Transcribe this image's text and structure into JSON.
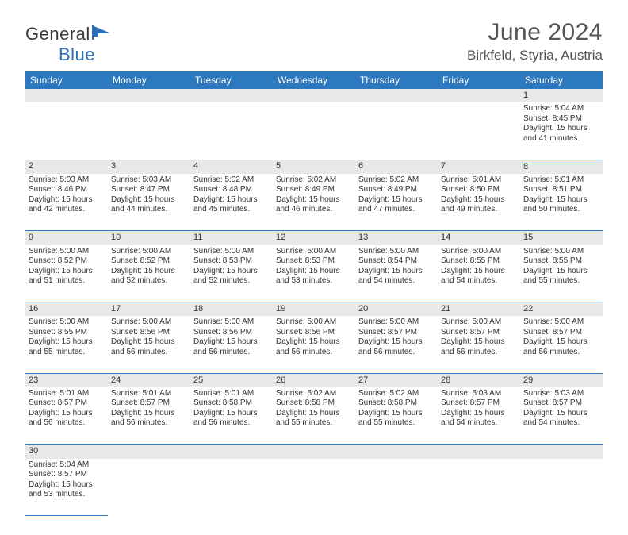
{
  "logo": {
    "text1": "General",
    "text2": "Blue"
  },
  "title": "June 2024",
  "location": "Birkfeld, Styria, Austria",
  "colors": {
    "header_bg": "#2d79bf",
    "header_text": "#ffffff",
    "daynum_bg": "#e8e8e8",
    "rule": "#2d79bf",
    "text": "#333333",
    "title_text": "#555555"
  },
  "day_headers": [
    "Sunday",
    "Monday",
    "Tuesday",
    "Wednesday",
    "Thursday",
    "Friday",
    "Saturday"
  ],
  "weeks": [
    [
      null,
      null,
      null,
      null,
      null,
      null,
      {
        "n": "1",
        "sr": "5:04 AM",
        "ss": "8:45 PM",
        "dl": "15 hours and 41 minutes."
      }
    ],
    [
      {
        "n": "2",
        "sr": "5:03 AM",
        "ss": "8:46 PM",
        "dl": "15 hours and 42 minutes."
      },
      {
        "n": "3",
        "sr": "5:03 AM",
        "ss": "8:47 PM",
        "dl": "15 hours and 44 minutes."
      },
      {
        "n": "4",
        "sr": "5:02 AM",
        "ss": "8:48 PM",
        "dl": "15 hours and 45 minutes."
      },
      {
        "n": "5",
        "sr": "5:02 AM",
        "ss": "8:49 PM",
        "dl": "15 hours and 46 minutes."
      },
      {
        "n": "6",
        "sr": "5:02 AM",
        "ss": "8:49 PM",
        "dl": "15 hours and 47 minutes."
      },
      {
        "n": "7",
        "sr": "5:01 AM",
        "ss": "8:50 PM",
        "dl": "15 hours and 49 minutes."
      },
      {
        "n": "8",
        "sr": "5:01 AM",
        "ss": "8:51 PM",
        "dl": "15 hours and 50 minutes."
      }
    ],
    [
      {
        "n": "9",
        "sr": "5:00 AM",
        "ss": "8:52 PM",
        "dl": "15 hours and 51 minutes."
      },
      {
        "n": "10",
        "sr": "5:00 AM",
        "ss": "8:52 PM",
        "dl": "15 hours and 52 minutes."
      },
      {
        "n": "11",
        "sr": "5:00 AM",
        "ss": "8:53 PM",
        "dl": "15 hours and 52 minutes."
      },
      {
        "n": "12",
        "sr": "5:00 AM",
        "ss": "8:53 PM",
        "dl": "15 hours and 53 minutes."
      },
      {
        "n": "13",
        "sr": "5:00 AM",
        "ss": "8:54 PM",
        "dl": "15 hours and 54 minutes."
      },
      {
        "n": "14",
        "sr": "5:00 AM",
        "ss": "8:55 PM",
        "dl": "15 hours and 54 minutes."
      },
      {
        "n": "15",
        "sr": "5:00 AM",
        "ss": "8:55 PM",
        "dl": "15 hours and 55 minutes."
      }
    ],
    [
      {
        "n": "16",
        "sr": "5:00 AM",
        "ss": "8:55 PM",
        "dl": "15 hours and 55 minutes."
      },
      {
        "n": "17",
        "sr": "5:00 AM",
        "ss": "8:56 PM",
        "dl": "15 hours and 56 minutes."
      },
      {
        "n": "18",
        "sr": "5:00 AM",
        "ss": "8:56 PM",
        "dl": "15 hours and 56 minutes."
      },
      {
        "n": "19",
        "sr": "5:00 AM",
        "ss": "8:56 PM",
        "dl": "15 hours and 56 minutes."
      },
      {
        "n": "20",
        "sr": "5:00 AM",
        "ss": "8:57 PM",
        "dl": "15 hours and 56 minutes."
      },
      {
        "n": "21",
        "sr": "5:00 AM",
        "ss": "8:57 PM",
        "dl": "15 hours and 56 minutes."
      },
      {
        "n": "22",
        "sr": "5:00 AM",
        "ss": "8:57 PM",
        "dl": "15 hours and 56 minutes."
      }
    ],
    [
      {
        "n": "23",
        "sr": "5:01 AM",
        "ss": "8:57 PM",
        "dl": "15 hours and 56 minutes."
      },
      {
        "n": "24",
        "sr": "5:01 AM",
        "ss": "8:57 PM",
        "dl": "15 hours and 56 minutes."
      },
      {
        "n": "25",
        "sr": "5:01 AM",
        "ss": "8:58 PM",
        "dl": "15 hours and 56 minutes."
      },
      {
        "n": "26",
        "sr": "5:02 AM",
        "ss": "8:58 PM",
        "dl": "15 hours and 55 minutes."
      },
      {
        "n": "27",
        "sr": "5:02 AM",
        "ss": "8:58 PM",
        "dl": "15 hours and 55 minutes."
      },
      {
        "n": "28",
        "sr": "5:03 AM",
        "ss": "8:57 PM",
        "dl": "15 hours and 54 minutes."
      },
      {
        "n": "29",
        "sr": "5:03 AM",
        "ss": "8:57 PM",
        "dl": "15 hours and 54 minutes."
      }
    ],
    [
      {
        "n": "30",
        "sr": "5:04 AM",
        "ss": "8:57 PM",
        "dl": "15 hours and 53 minutes."
      },
      null,
      null,
      null,
      null,
      null,
      null
    ]
  ],
  "labels": {
    "sunrise": "Sunrise: ",
    "sunset": "Sunset: ",
    "daylight": "Daylight: "
  }
}
